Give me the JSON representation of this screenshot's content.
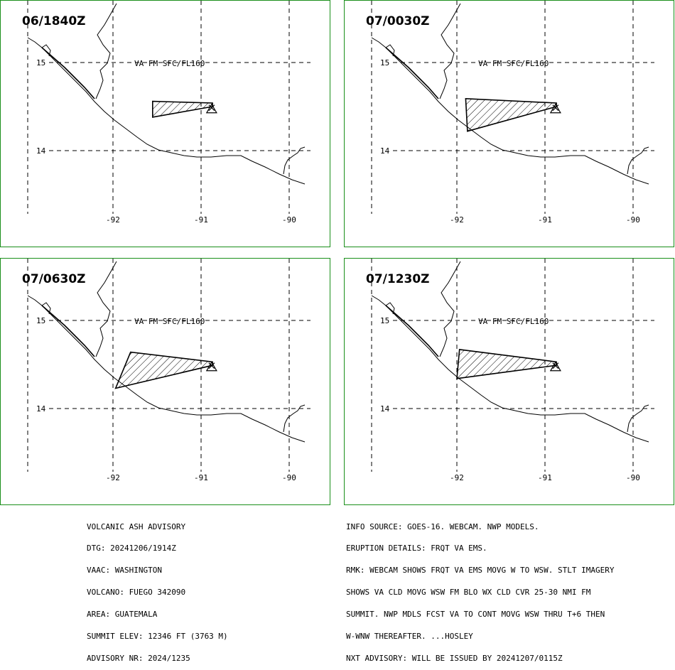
{
  "panels": [
    {
      "time": "06/1840Z",
      "va_label": "VA FM SFC/FL160",
      "polygon": [
        [
          -91.55,
          14.56
        ],
        [
          -91.55,
          14.38
        ],
        [
          -90.87,
          14.5
        ],
        [
          -90.87,
          14.54
        ]
      ]
    },
    {
      "time": "07/0030Z",
      "va_label": "VA FM SFC/FL160",
      "polygon": [
        [
          -91.9,
          14.59
        ],
        [
          -91.88,
          14.22
        ],
        [
          -90.87,
          14.5
        ],
        [
          -90.87,
          14.54
        ]
      ]
    },
    {
      "time": "07/0630Z",
      "va_label": "VA FM SFC/FL160",
      "polygon": [
        [
          -91.8,
          14.64
        ],
        [
          -91.97,
          14.23
        ],
        [
          -90.87,
          14.49
        ],
        [
          -90.87,
          14.53
        ]
      ]
    },
    {
      "time": "07/1230Z",
      "va_label": "VA FM SFC/FL160",
      "polygon": [
        [
          -91.97,
          14.67
        ],
        [
          -92.0,
          14.34
        ],
        [
          -90.87,
          14.49
        ],
        [
          -90.87,
          14.53
        ]
      ]
    }
  ],
  "map": {
    "lat_labels": [
      "15",
      "14"
    ],
    "lon_labels": [
      "-92",
      "-91",
      "-90"
    ],
    "volcano_symbol": "triangle-x-icon"
  },
  "advisory_left": [
    "VOLCANIC ASH ADVISORY",
    "DTG: 20241206/1914Z",
    "VAAC: WASHINGTON",
    "VOLCANO: FUEGO 342090",
    "AREA: GUATEMALA",
    "SUMMIT ELEV: 12346 FT (3763 M)",
    "ADVISORY NR: 2024/1235"
  ],
  "advisory_right": [
    "INFO SOURCE: GOES-16. WEBCAM. NWP MODELS.",
    "ERUPTION DETAILS: FRQT VA EMS.",
    "RMK: WEBCAM SHOWS FRQT VA EMS MOVG W TO WSW. STLT IMAGERY",
    "SHOWS VA CLD MOVG WSW FM BLO WX CLD CVR 25-30 NMI FM",
    "SUMMIT. NWP MDLS FCST VA TO CONT MOVG WSW THRU T+6 THEN",
    "W-WNW THEREAFTER. ...HOSLEY",
    "NXT ADVISORY: WILL BE ISSUED BY 20241207/0115Z"
  ],
  "colors": {
    "border": "#1a8f1a",
    "lines": "#000000"
  }
}
